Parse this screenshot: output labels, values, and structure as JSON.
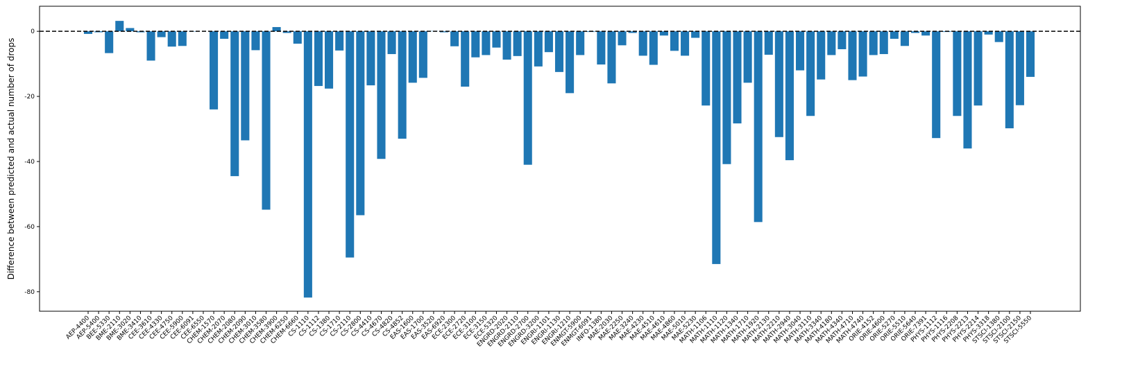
{
  "chart_data": {
    "type": "bar",
    "y_label": "Difference between predicted and actual number of drops",
    "categories": [
      "AEP-4400",
      "AEP-5400",
      "BEE-5330",
      "BME-2110",
      "BME-3020",
      "BME-3410",
      "CEE-3610",
      "CEE-4330",
      "CEE-4750",
      "CEE-5900",
      "CEE-6091",
      "CEE-6550",
      "CHEM-1570",
      "CHEM-2070",
      "CHEM-2080",
      "CHEM-2090",
      "CHEM-3010",
      "CHEM-3580",
      "CHEM-3900",
      "CHEM-6250",
      "CHEM-6660",
      "CS-1110",
      "CS-1112",
      "CS-1380",
      "CS-1710",
      "CS-2110",
      "CS-2800",
      "CS-4410",
      "CS-4670",
      "CS-4820",
      "CS-4852",
      "EAS-1600",
      "EAS-1700",
      "EAS-3520",
      "EAS-6920",
      "ECE-2300",
      "ECE-2720",
      "ECE-3100",
      "ECE-3150",
      "ECE-5320",
      "ENGRD-2020",
      "ENGRD-2110",
      "ENGRD-2700",
      "ENGRD-3200",
      "ENGRI-1101",
      "ENGRI-1130",
      "ENGRI-1210",
      "ENMGT-5900",
      "ENMGT-6091",
      "INFO-1380",
      "MAE-2030",
      "MAE-2250",
      "MAE-3240",
      "MAE-4230",
      "MAE-4510",
      "MAE-4610",
      "MAE-4860",
      "MAE-5010",
      "MAE-5230",
      "MATH-1106",
      "MATH-1110",
      "MATH-1120",
      "MATH-1340",
      "MATH-1710",
      "MATH-1920",
      "MATH-2130",
      "MATH-2210",
      "MATH-2940",
      "MATH-3040",
      "MATH-3110",
      "MATH-3340",
      "MATH-4180",
      "MATH-4340",
      "MATH-4710",
      "MATH-4740",
      "ORIE-4152",
      "ORIE-4600",
      "ORIE-5270",
      "ORIE-5510",
      "ORIE-5640",
      "ORIE-7391",
      "PHYS-1112",
      "PHYS-1116",
      "PHYS-2208",
      "PHYS-2213",
      "PHYS-2214",
      "PHYS-3318",
      "STSCI-1380",
      "STSCI-2100",
      "STSCI-2150",
      "STSCI-5550"
    ],
    "values": [
      -0.8,
      -0.3,
      -6.7,
      3.2,
      1.0,
      -0.3,
      -9.0,
      -1.8,
      -4.7,
      -4.5,
      -0.1,
      0,
      -24,
      -2.3,
      -44.5,
      -33.5,
      -5.8,
      -54.8,
      1.3,
      -0.5,
      -3.8,
      -81.8,
      -16.8,
      -17.6,
      -5.9,
      -69.5,
      -56.5,
      -16.6,
      -39.2,
      -7.0,
      -33.0,
      -15.8,
      -14.3,
      0.1,
      -0.3,
      -4.6,
      -17,
      -8,
      -7.3,
      -5,
      -8.7,
      -7.6,
      -41,
      -10.8,
      -6.4,
      -12.5,
      -19,
      -7.3,
      -0.2,
      -10.2,
      -16,
      -4.3,
      -0.5,
      -7.5,
      -10.3,
      -1.3,
      -6,
      -7.5,
      -2,
      -22.8,
      -71.5,
      -40.8,
      -28.3,
      -15.8,
      -58.6,
      -7.2,
      -32.5,
      -39.6,
      -12,
      -26,
      -14.8,
      -7.3,
      -5.5,
      -15,
      -13.9,
      -7.3,
      -7,
      -2.3,
      -4.5,
      -0.5,
      -1.3,
      -32.8,
      -0.2,
      -26,
      -36,
      -22.8,
      -1,
      -3.3,
      -29.8,
      -22.7,
      -14
    ],
    "color": "#1f77b4",
    "ylim": [
      -86,
      7.7
    ],
    "yticks": [
      -80,
      -60,
      -40,
      -20,
      0
    ],
    "hline": 0,
    "hline_style": "dashed",
    "grid": false
  }
}
